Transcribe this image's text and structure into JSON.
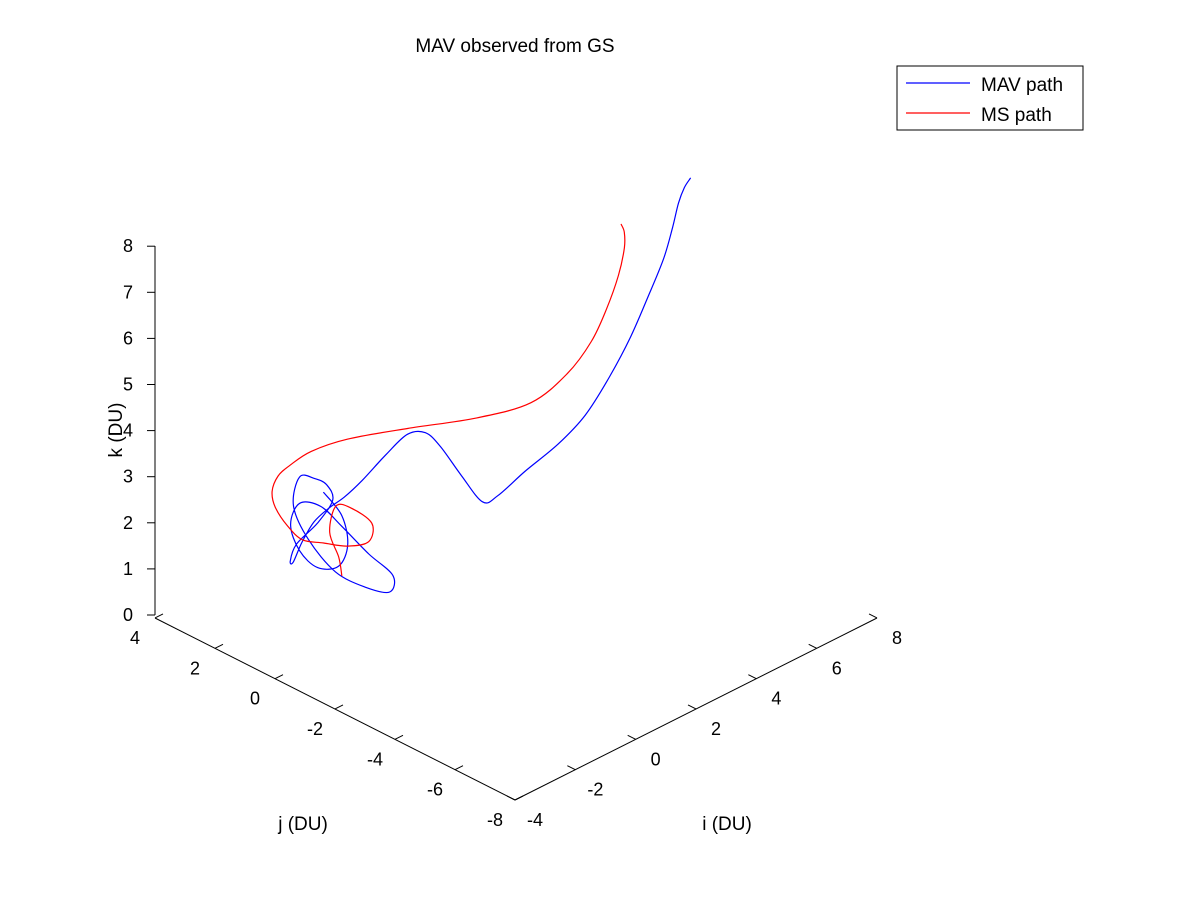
{
  "chart_data": {
    "type": "line",
    "projection": "3d",
    "title": "MAV observed from GS",
    "xlabel": "i (DU)",
    "ylabel": "j (DU)",
    "zlabel": "k (DU)",
    "xlim": [
      -4,
      8
    ],
    "ylim": [
      -8,
      4
    ],
    "zlim": [
      0,
      8
    ],
    "xticks": [
      "-4",
      "-2",
      "0",
      "2",
      "4",
      "6",
      "8"
    ],
    "yticks": [
      "4",
      "2",
      "0",
      "-2",
      "-4",
      "-6",
      "-8"
    ],
    "zticks": [
      "0",
      "1",
      "2",
      "3",
      "4",
      "5",
      "6",
      "7",
      "8"
    ],
    "grid": false,
    "legend_position": "top-right",
    "series": [
      {
        "name": "MAV path",
        "color": "#0000ff",
        "points": [
          [
            0.2,
            2.6,
            1.8
          ],
          [
            0.5,
            2.3,
            1.3
          ],
          [
            0.4,
            2.0,
            0.8
          ],
          [
            0.0,
            1.9,
            0.5
          ],
          [
            -0.4,
            2.2,
            0.5
          ],
          [
            -0.6,
            2.6,
            0.8
          ],
          [
            -0.5,
            3.0,
            1.2
          ],
          [
            -0.1,
            3.1,
            1.5
          ],
          [
            0.3,
            2.8,
            1.4
          ],
          [
            0.6,
            2.4,
            1.0
          ],
          [
            0.9,
            1.8,
            0.5
          ],
          [
            0.9,
            1.0,
            0.3
          ],
          [
            0.3,
            0.5,
            0.3
          ],
          [
            -0.4,
            0.6,
            0.6
          ],
          [
            -1.0,
            1.0,
            1.0
          ],
          [
            -1.3,
            1.6,
            1.6
          ],
          [
            -1.2,
            2.2,
            2.1
          ],
          [
            -0.6,
            2.6,
            2.4
          ],
          [
            -0.1,
            2.6,
            2.2
          ],
          [
            0.2,
            2.5,
            2.0
          ],
          [
            0.1,
            2.2,
            1.8
          ],
          [
            -0.6,
            2.0,
            1.6
          ],
          [
            -1.5,
            1.8,
            1.5
          ],
          [
            -2.3,
            1.2,
            1.6
          ],
          [
            -2.9,
            0.5,
            2.0
          ],
          [
            -3.3,
            -0.2,
            2.8
          ],
          [
            -3.5,
            -0.8,
            3.5
          ],
          [
            -3.4,
            -1.2,
            3.9
          ],
          [
            -3.1,
            -1.4,
            4.1
          ],
          [
            -2.7,
            -1.6,
            4.4
          ],
          [
            -2.2,
            -1.9,
            4.9
          ],
          [
            -1.8,
            -2.2,
            5.3
          ],
          [
            -1.6,
            -2.6,
            5.4
          ],
          [
            -1.5,
            -3.0,
            5.2
          ],
          [
            -1.2,
            -3.4,
            4.6
          ],
          [
            -0.8,
            -3.7,
            4.0
          ],
          [
            -0.2,
            -3.6,
            3.9
          ],
          [
            0.9,
            -3.4,
            4.0
          ],
          [
            2.2,
            -3.2,
            4.1
          ],
          [
            3.3,
            -3.0,
            4.3
          ],
          [
            4.2,
            -2.9,
            4.8
          ],
          [
            4.8,
            -3.0,
            5.5
          ],
          [
            5.1,
            -3.3,
            6.4
          ],
          [
            5.2,
            -3.7,
            7.3
          ],
          [
            5.0,
            -4.2,
            8.2
          ],
          [
            4.7,
            -4.7,
            9.0
          ],
          [
            4.4,
            -5.2,
            9.6
          ],
          [
            4.2,
            -5.6,
            10.0
          ]
        ]
      },
      {
        "name": "MS path",
        "color": "#ff0000",
        "points": [
          [
            0.5,
            2.3,
            0.0
          ],
          [
            0.3,
            2.2,
            0.5
          ],
          [
            0.2,
            2.4,
            1.0
          ],
          [
            0.4,
            2.4,
            1.5
          ],
          [
            0.6,
            2.1,
            1.5
          ],
          [
            0.9,
            1.7,
            1.2
          ],
          [
            0.7,
            1.6,
            0.9
          ],
          [
            0.2,
            1.8,
            0.9
          ],
          [
            -0.4,
            2.0,
            1.1
          ],
          [
            -1.1,
            2.0,
            1.4
          ],
          [
            -1.8,
            1.8,
            2.0
          ],
          [
            -2.6,
            1.4,
            2.8
          ],
          [
            -3.2,
            0.9,
            3.5
          ],
          [
            -3.5,
            0.4,
            4.1
          ],
          [
            -3.4,
            0.1,
            4.4
          ],
          [
            -2.9,
            -0.1,
            4.6
          ],
          [
            -2.2,
            -0.6,
            4.8
          ],
          [
            -1.0,
            -1.4,
            4.9
          ],
          [
            0.5,
            -2.2,
            4.9
          ],
          [
            1.9,
            -2.6,
            4.9
          ],
          [
            3.0,
            -2.7,
            5.2
          ],
          [
            3.7,
            -2.8,
            5.7
          ],
          [
            4.1,
            -2.9,
            6.3
          ],
          [
            4.2,
            -3.2,
            7.1
          ],
          [
            4.0,
            -3.6,
            7.9
          ],
          [
            3.6,
            -4.0,
            8.5
          ],
          [
            3.2,
            -4.3,
            8.9
          ]
        ]
      }
    ]
  }
}
